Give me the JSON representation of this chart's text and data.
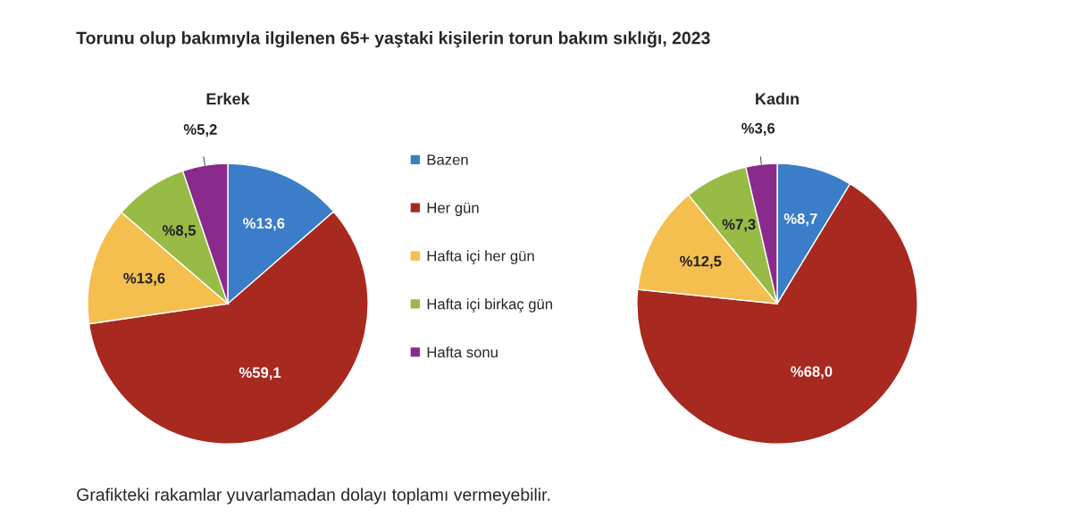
{
  "chart_data": [
    {
      "type": "pie",
      "title": "Erkek",
      "categories": [
        "Bazen",
        "Her gün",
        "Hafta içi her gün",
        "Hafta içi birkaç gün",
        "Hafta sonu"
      ],
      "values": [
        13.6,
        59.1,
        13.6,
        8.5,
        5.2
      ],
      "colors": [
        "#3b7dc8",
        "#a8291f",
        "#f4bf4f",
        "#98bb45",
        "#8a2a8c"
      ],
      "value_labels": [
        "%13,6",
        "%59,1",
        "%13,6",
        "%8,5",
        "%5,2"
      ],
      "legend": "right",
      "annotations": [
        "Torunu olup bakımıyla ilgilenen 65+ yaştaki kişilerin torun bakım sıklığı, 2023",
        "Grafikteki rakamlar yuvarlamadan dolayı toplamı vermeyebilir."
      ]
    },
    {
      "type": "pie",
      "title": "Kadın",
      "categories": [
        null,
        null,
        null,
        null,
        null
      ],
      "values": [
        8.7,
        68.0,
        12.5,
        7.3,
        3.6
      ],
      "colors": [
        "#3b7dc8",
        "#a8291f",
        "#f4bf4f",
        "#98bb45",
        "#8a2a8c"
      ],
      "value_labels": [
        "%8,7",
        "%68,0",
        "%12,5",
        "%7,3",
        "%3,6"
      ]
    }
  ]
}
